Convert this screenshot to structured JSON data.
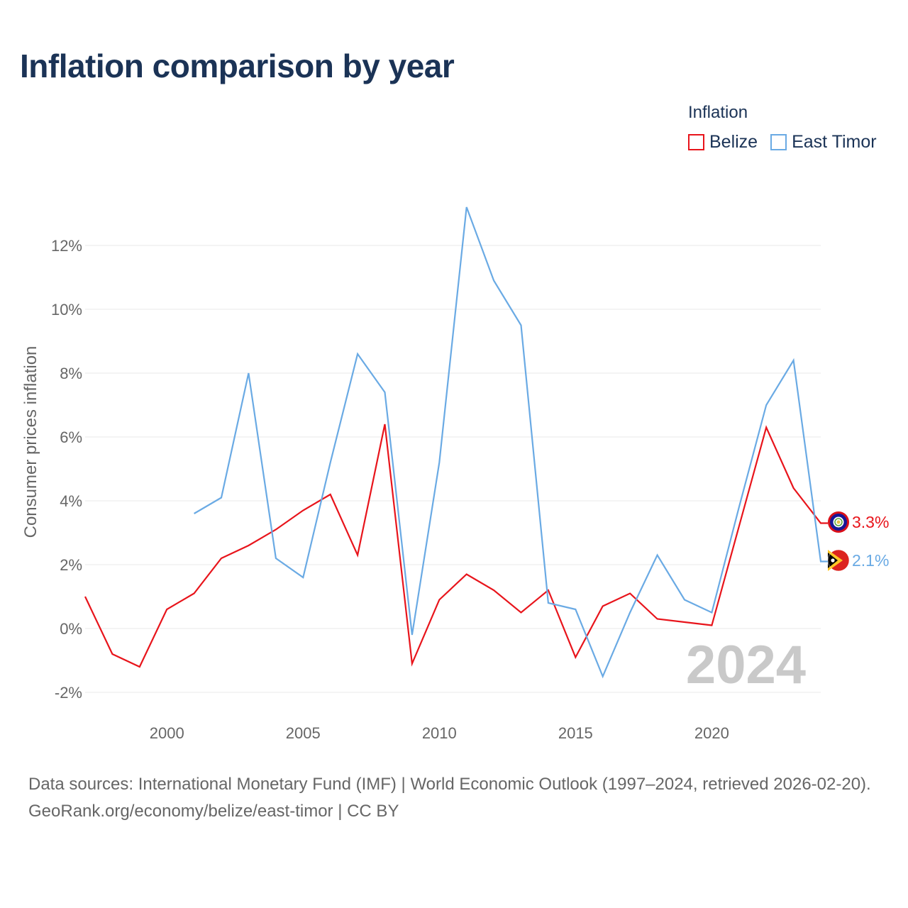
{
  "title": "Inflation comparison by year",
  "legend": {
    "title": "Inflation",
    "items": [
      {
        "label": "Belize",
        "color": "#e8141b"
      },
      {
        "label": "East Timor",
        "color": "#6aaae4"
      }
    ]
  },
  "chart_data": {
    "type": "line",
    "title": "Inflation comparison by year",
    "ylabel": "Consumer prices inflation",
    "xlabel": "",
    "xlim": [
      1997,
      2024
    ],
    "ylim": [
      -2.6,
      13.5
    ],
    "yticks": [
      -2,
      0,
      2,
      4,
      6,
      8,
      10,
      12
    ],
    "ytick_labels": [
      "-2%",
      "0%",
      "2%",
      "4%",
      "6%",
      "8%",
      "10%",
      "12%"
    ],
    "xticks": [
      2000,
      2005,
      2010,
      2015,
      2020
    ],
    "xtick_labels": [
      "2000",
      "2005",
      "2010",
      "2015",
      "2020"
    ],
    "watermark_year": "2024",
    "series": [
      {
        "name": "Belize",
        "color": "#e8141b",
        "end_label": "3.3%",
        "flag_icon": "belize-flag-icon",
        "x": [
          1997,
          1998,
          1999,
          2000,
          2001,
          2002,
          2003,
          2004,
          2005,
          2006,
          2007,
          2008,
          2009,
          2010,
          2011,
          2012,
          2013,
          2014,
          2015,
          2016,
          2017,
          2018,
          2019,
          2020,
          2021,
          2022,
          2023,
          2024
        ],
        "values": [
          1.0,
          -0.8,
          -1.2,
          0.6,
          1.1,
          2.2,
          2.6,
          3.1,
          3.7,
          4.2,
          2.3,
          6.4,
          -1.1,
          0.9,
          1.7,
          1.2,
          0.5,
          1.2,
          -0.9,
          0.7,
          1.1,
          0.3,
          0.2,
          0.1,
          3.2,
          6.3,
          4.4,
          3.3
        ]
      },
      {
        "name": "East Timor",
        "color": "#6aaae4",
        "end_label": "2.1%",
        "flag_icon": "east-timor-flag-icon",
        "x": [
          2001,
          2002,
          2003,
          2004,
          2005,
          2006,
          2007,
          2008,
          2009,
          2010,
          2011,
          2012,
          2013,
          2014,
          2015,
          2016,
          2017,
          2018,
          2019,
          2020,
          2021,
          2022,
          2023,
          2024
        ],
        "values": [
          3.6,
          4.1,
          8.0,
          2.2,
          1.6,
          5.2,
          8.6,
          7.4,
          -0.2,
          5.2,
          13.2,
          10.9,
          9.5,
          0.8,
          0.6,
          -1.5,
          0.5,
          2.3,
          0.9,
          0.5,
          3.8,
          7.0,
          8.4,
          2.1
        ]
      }
    ]
  },
  "source": {
    "line1": "Data sources: International Monetary Fund (IMF) | World Economic Outlook (1997–2024, retrieved 2026-02-20).",
    "line2": "GeoRank.org/economy/belize/east-timor | CC BY"
  }
}
